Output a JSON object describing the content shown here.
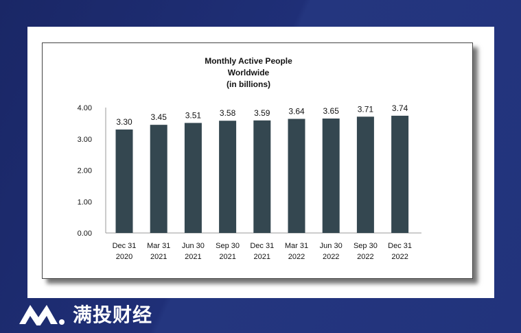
{
  "brand": {
    "name": "满投财经"
  },
  "chart_data": {
    "type": "bar",
    "title": [
      "Monthly Active People",
      "Worldwide",
      "(in billions)"
    ],
    "categories": [
      [
        "Dec 31",
        "2020"
      ],
      [
        "Mar 31",
        "2021"
      ],
      [
        "Jun 30",
        "2021"
      ],
      [
        "Sep 30",
        "2021"
      ],
      [
        "Dec 31",
        "2021"
      ],
      [
        "Mar 31",
        "2022"
      ],
      [
        "Jun 30",
        "2022"
      ],
      [
        "Sep 30",
        "2022"
      ],
      [
        "Dec 31",
        "2022"
      ]
    ],
    "values": [
      3.3,
      3.45,
      3.51,
      3.58,
      3.59,
      3.64,
      3.65,
      3.71,
      3.74
    ],
    "value_labels": [
      "3.30",
      "3.45",
      "3.51",
      "3.58",
      "3.59",
      "3.64",
      "3.65",
      "3.71",
      "3.74"
    ],
    "ylim": [
      0,
      4
    ],
    "yticks": [
      "0.00",
      "1.00",
      "2.00",
      "3.00",
      "4.00"
    ],
    "ytick_values": [
      0,
      1,
      2,
      3,
      4
    ],
    "bar_color": "#344750",
    "grid": false,
    "legend": "none"
  }
}
